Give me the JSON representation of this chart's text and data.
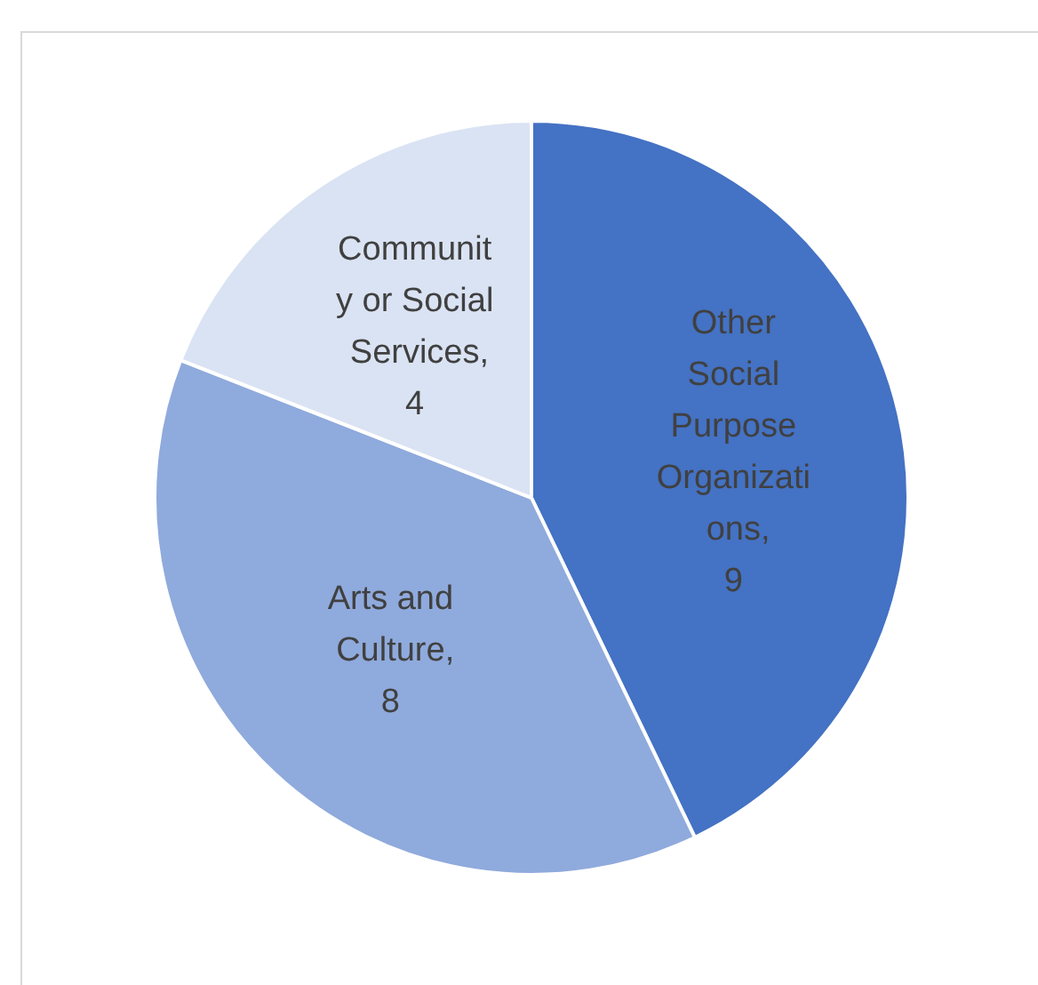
{
  "chart_data": {
    "type": "pie",
    "categories": [
      "Other Social Purpose Organizations",
      "Arts and Culture",
      "Community or Social Services"
    ],
    "values": [
      9,
      8,
      4
    ],
    "colors": [
      "#4472c4",
      "#8faadc",
      "#dae3f3"
    ],
    "value_labels": [
      ", 9",
      ", 8",
      ", 4"
    ]
  }
}
